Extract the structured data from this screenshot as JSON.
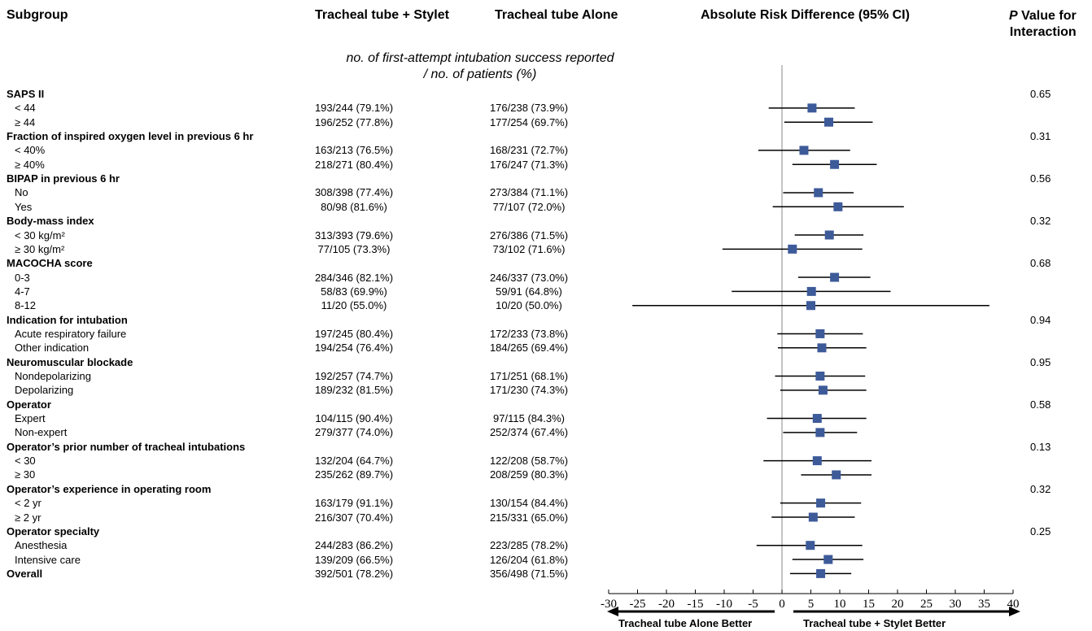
{
  "headers": {
    "subgroup": "Subgroup",
    "stylet": "Tracheal tube + Stylet",
    "alone": "Tracheal tube Alone",
    "ard": "Absolute Risk Difference (95% CI)",
    "pval_p": "P",
    "pval_rest1": " Value for",
    "pval_rest2": "Interaction"
  },
  "note_line1": "no. of first-attempt intubation success reported",
  "note_line2": "/ no. of patients (%)",
  "rows": [
    {
      "label": "SAPS II",
      "group": true,
      "p": "0.65"
    },
    {
      "label": "< 44",
      "a": "193/244 (79.1%)",
      "b": "176/238 (73.9%)",
      "est": 5.2,
      "lo": -2.3,
      "hi": 12.6
    },
    {
      "label": "≥ 44",
      "a": "196/252 (77.8%)",
      "b": "177/254 (69.7%)",
      "est": 8.1,
      "lo": 0.4,
      "hi": 15.7
    },
    {
      "label": "Fraction of inspired oxygen level in previous 6 hr",
      "group": true,
      "p": "0.31"
    },
    {
      "label": "< 40%",
      "a": "163/213 (76.5%)",
      "b": "168/231 (72.7%)",
      "est": 3.8,
      "lo": -4.1,
      "hi": 11.8
    },
    {
      "label": "≥ 40%",
      "a": "218/271 (80.4%)",
      "b": "176/247 (71.3%)",
      "est": 9.1,
      "lo": 1.8,
      "hi": 16.4
    },
    {
      "label": "BIPAP in previous 6 hr",
      "group": true,
      "p": "0.56"
    },
    {
      "label": "No",
      "a": "308/398 (77.4%)",
      "b": "273/384 (71.1%)",
      "est": 6.3,
      "lo": 0.2,
      "hi": 12.4
    },
    {
      "label": "Yes",
      "a": "80/98 (81.6%)",
      "b": "77/107 (72.0%)",
      "est": 9.7,
      "lo": -1.6,
      "hi": 21.1
    },
    {
      "label": "Body-mass index",
      "group": true,
      "p": "0.32"
    },
    {
      "label": "< 30 kg/m²",
      "a": "313/393 (79.6%)",
      "b": "276/386 (71.5%)",
      "est": 8.2,
      "lo": 2.2,
      "hi": 14.1
    },
    {
      "label": "≥ 30 kg/m²",
      "a": "77/105 (73.3%)",
      "b": "73/102 (71.6%)",
      "est": 1.8,
      "lo": -10.3,
      "hi": 13.9
    },
    {
      "label": "MACOCHA score",
      "group": true,
      "p": "0.68"
    },
    {
      "label": "0-3",
      "a": "284/346 (82.1%)",
      "b": "246/337 (73.0%)",
      "est": 9.1,
      "lo": 2.8,
      "hi": 15.3
    },
    {
      "label": "4-7",
      "a": "58/83 (69.9%)",
      "b": "59/91 (64.8%)",
      "est": 5.1,
      "lo": -8.7,
      "hi": 18.8
    },
    {
      "label": "8-12",
      "a": "11/20 (55.0%)",
      "b": "10/20 (50.0%)",
      "est": 5.0,
      "lo": -25.9,
      "hi": 35.9
    },
    {
      "label": "Indication for intubation",
      "group": true,
      "p": "0.94"
    },
    {
      "label": "Acute respiratory failure",
      "a": "197/245 (80.4%)",
      "b": "172/233 (73.8%)",
      "est": 6.6,
      "lo": -0.8,
      "hi": 14.0
    },
    {
      "label": "Other indication",
      "a": "194/254 (76.4%)",
      "b": "184/265 (69.4%)",
      "est": 6.9,
      "lo": -0.7,
      "hi": 14.6
    },
    {
      "label": "Neuromuscular blockade",
      "group": true,
      "p": "0.95"
    },
    {
      "label": "Nondepolarizing",
      "a": "192/257 (74.7%)",
      "b": "171/251 (68.1%)",
      "est": 6.6,
      "lo": -1.2,
      "hi": 14.4
    },
    {
      "label": "Depolarizing",
      "a": "189/232 (81.5%)",
      "b": "171/230 (74.3%)",
      "est": 7.1,
      "lo": -0.3,
      "hi": 14.6
    },
    {
      "label": "Operator",
      "group": true,
      "p": "0.58"
    },
    {
      "label": "Expert",
      "a": "104/115 (90.4%)",
      "b": "97/115 (84.3%)",
      "est": 6.1,
      "lo": -2.6,
      "hi": 14.6
    },
    {
      "label": "Non-expert",
      "a": "279/377 (74.0%)",
      "b": "252/374 (67.4%)",
      "est": 6.6,
      "lo": 0.2,
      "hi": 13.0
    },
    {
      "label": "Operator’s prior number of tracheal intubations",
      "group": true,
      "p": "0.13"
    },
    {
      "label": "< 30",
      "a": "132/204 (64.7%)",
      "b": "122/208 (58.7%)",
      "est": 6.1,
      "lo": -3.2,
      "hi": 15.5
    },
    {
      "label": "≥ 30",
      "a": "235/262 (89.7%)",
      "b": "208/259 (80.3%)",
      "est": 9.4,
      "lo": 3.3,
      "hi": 15.5
    },
    {
      "label": "Operator’s experience in operating room",
      "group": true,
      "p": "0.32"
    },
    {
      "label": "< 2 yr",
      "a": "163/179 (91.1%)",
      "b": "130/154 (84.4%)",
      "est": 6.7,
      "lo": -0.3,
      "hi": 13.7
    },
    {
      "label": "≥ 2 yr",
      "a": "216/307 (70.4%)",
      "b": "215/331 (65.0%)",
      "est": 5.4,
      "lo": -1.8,
      "hi": 12.6
    },
    {
      "label": "Operator specialty",
      "group": true,
      "p": "0.25"
    },
    {
      "label": "Anesthesia",
      "a": "244/283 (86.2%)",
      "b": "223/285 (78.2%)",
      "est": 4.9,
      "lo": -4.4,
      "hi": 13.9
    },
    {
      "label": "Intensive care",
      "a": "139/209 (66.5%)",
      "b": "126/204 (61.8%)",
      "est": 8.0,
      "lo": 1.8,
      "hi": 14.1
    },
    {
      "label": "Overall",
      "group": true,
      "overall": true,
      "a": "392/501 (78.2%)",
      "b": "356/498 (71.5%)",
      "est": 6.7,
      "lo": 1.4,
      "hi": 12.0
    }
  ],
  "axis": {
    "left_label": "Tracheal tube Alone Better",
    "right_label": "Tracheal tube + Stylet Better"
  },
  "chart_data": {
    "type": "forest",
    "xlim": [
      -30,
      40
    ],
    "ticks": [
      -30,
      -25,
      -20,
      -15,
      -10,
      -5,
      0,
      5,
      10,
      15,
      20,
      25,
      30,
      35,
      40
    ],
    "reference_line": 0,
    "marker_color": "#3d5a99",
    "line_color": "#000000"
  }
}
